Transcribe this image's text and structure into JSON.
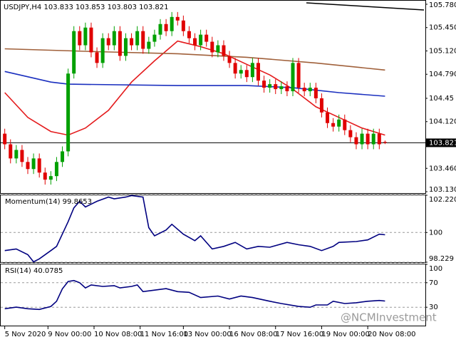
{
  "chart_data": [
    {
      "type": "candlestick",
      "title": "USDJPY,H4",
      "open": [
        103.95,
        103.8,
        103.6,
        103.72,
        103.55,
        103.45,
        103.6,
        103.4,
        103.3,
        103.35,
        103.55,
        103.7,
        104.8,
        105.4,
        105.2,
        105.45,
        105.1,
        104.95,
        105.3,
        105.2,
        105.4,
        105.05,
        105.3,
        105.2,
        105.4,
        105.15,
        105.25,
        105.35,
        105.5,
        105.4,
        105.6,
        105.55,
        105.4,
        105.3,
        105.2,
        105.35,
        105.25,
        105.1,
        105.2,
        105.05,
        104.95,
        104.8,
        104.85,
        104.75,
        104.95,
        104.7,
        104.6,
        104.65,
        104.58,
        104.62,
        104.55,
        104.95,
        104.6,
        104.55,
        104.6,
        104.45,
        104.25,
        104.1,
        104.05,
        104.15,
        104.0,
        103.9,
        103.8,
        103.95,
        103.8,
        103.95,
        103.833
      ],
      "high": [
        104.02,
        103.87,
        103.79,
        103.79,
        103.62,
        103.67,
        103.67,
        103.47,
        103.42,
        103.62,
        103.77,
        104.87,
        105.47,
        105.47,
        105.52,
        105.52,
        105.17,
        105.37,
        105.37,
        105.47,
        105.47,
        105.37,
        105.37,
        105.47,
        105.47,
        105.32,
        105.42,
        105.57,
        105.57,
        105.67,
        105.67,
        105.62,
        105.47,
        105.37,
        105.42,
        105.42,
        105.32,
        105.27,
        105.27,
        105.12,
        105.02,
        104.92,
        104.92,
        105.02,
        105.02,
        104.77,
        104.72,
        104.72,
        104.69,
        104.69,
        105.02,
        105.02,
        104.67,
        104.67,
        104.67,
        104.52,
        104.32,
        104.17,
        104.22,
        104.22,
        104.07,
        103.97,
        104.02,
        104.02,
        104.02,
        104.02,
        103.853
      ],
      "low": [
        103.73,
        103.53,
        103.53,
        103.48,
        103.38,
        103.38,
        103.33,
        103.23,
        103.23,
        103.28,
        103.48,
        103.63,
        104.73,
        105.13,
        105.13,
        105.03,
        104.88,
        104.88,
        105.13,
        105.13,
        104.98,
        104.98,
        105.13,
        105.13,
        105.08,
        105.08,
        105.18,
        105.28,
        105.33,
        105.33,
        105.48,
        105.33,
        105.23,
        105.13,
        105.13,
        105.18,
        105.03,
        105.03,
        104.98,
        104.88,
        104.73,
        104.73,
        104.68,
        104.68,
        104.63,
        104.53,
        104.53,
        104.51,
        104.51,
        104.48,
        104.48,
        104.53,
        104.48,
        104.48,
        104.38,
        104.18,
        104.03,
        103.98,
        103.98,
        103.93,
        103.83,
        103.73,
        103.73,
        103.73,
        103.73,
        103.73,
        103.803
      ],
      "close": [
        103.8,
        103.6,
        103.72,
        103.55,
        103.45,
        103.6,
        103.4,
        103.3,
        103.35,
        103.55,
        103.7,
        104.8,
        105.4,
        105.2,
        105.45,
        105.1,
        104.95,
        105.3,
        105.2,
        105.4,
        105.05,
        105.3,
        105.2,
        105.4,
        105.15,
        105.25,
        105.35,
        105.5,
        105.4,
        105.6,
        105.55,
        105.4,
        105.3,
        105.2,
        105.35,
        105.25,
        105.1,
        105.2,
        105.05,
        104.95,
        104.8,
        104.85,
        104.75,
        104.95,
        104.7,
        104.6,
        104.65,
        104.58,
        104.62,
        104.55,
        104.95,
        104.6,
        104.55,
        104.6,
        104.45,
        104.25,
        104.1,
        104.05,
        104.15,
        104.0,
        103.9,
        103.8,
        103.95,
        103.8,
        103.95,
        103.8,
        103.821
      ],
      "up_color": "#00a000",
      "down_color": "#e00000",
      "lines": [
        {
          "color": "#e41a1c",
          "x": [
            0,
            4,
            8,
            11,
            14,
            18,
            22,
            26,
            30,
            34,
            38,
            42,
            46,
            50,
            54,
            58,
            62,
            66
          ],
          "values": [
            104.53,
            104.18,
            103.98,
            103.93,
            104.03,
            104.28,
            104.68,
            104.98,
            105.26,
            105.18,
            105.08,
            104.93,
            104.78,
            104.58,
            104.33,
            104.18,
            104.03,
            103.93
          ]
        },
        {
          "color": "#1a2fbf",
          "x": [
            0,
            8,
            11,
            30,
            42,
            50,
            58,
            66
          ],
          "values": [
            104.83,
            104.68,
            104.65,
            104.63,
            104.63,
            104.6,
            104.53,
            104.48
          ]
        },
        {
          "color": "#a0603a",
          "x": [
            0,
            16,
            30,
            42,
            54,
            66
          ],
          "values": [
            105.15,
            105.11,
            105.08,
            105.03,
            104.95,
            104.85
          ]
        }
      ],
      "ylim": [
        103.11,
        105.83
      ],
      "yticks": [
        {
          "value": 105.78,
          "label": "105.780"
        },
        {
          "value": 105.12,
          "label": "105.120"
        },
        {
          "value": 105.45,
          "label": "105.450"
        },
        {
          "value": 104.79,
          "label": "104.790"
        },
        104.45,
        {
          "value": 104.12,
          "label": "104.120"
        },
        103.821,
        {
          "value": 103.46,
          "label": "103.460"
        },
        {
          "value": 103.13,
          "label": "103.130"
        }
      ],
      "xlim": [
        -0.7,
        73
      ],
      "xticks": [
        {
          "value": 0,
          "label": "5 Nov 2020"
        },
        {
          "value": 7.5,
          "label": "9 Nov 00:00"
        },
        {
          "value": 15.5,
          "label": "10 Nov 08:00"
        },
        {
          "value": 23.5,
          "label": "11 Nov 16:00"
        },
        {
          "value": 31,
          "label": "13 Nov 00:00"
        },
        {
          "value": 39,
          "label": "16 Nov 08:00"
        },
        {
          "value": 47,
          "label": "17 Nov 16:00"
        },
        {
          "value": 55,
          "label": "19 Nov 00:00"
        },
        {
          "value": 63,
          "label": "20 Nov 08:00"
        }
      ]
    },
    {
      "type": "line",
      "title": "Momentum(14) 99.8653",
      "color": "#000080",
      "x": [
        0,
        2,
        4,
        5,
        6,
        8,
        9,
        11,
        12,
        13,
        14,
        16,
        18,
        19,
        21,
        22,
        24,
        25,
        26,
        28,
        29,
        31,
        33,
        34,
        36,
        38,
        40,
        42,
        44,
        46,
        49,
        51,
        53,
        55,
        57,
        58,
        61,
        63,
        65,
        66
      ],
      "values": [
        98.92,
        99.02,
        98.68,
        98.25,
        98.43,
        98.92,
        99.17,
        100.64,
        101.47,
        101.86,
        101.52,
        101.86,
        102.11,
        102.01,
        102.11,
        102.2,
        102.11,
        100.29,
        99.8,
        100.15,
        100.49,
        99.9,
        99.51,
        99.8,
        99.02,
        99.17,
        99.41,
        99.02,
        99.17,
        99.12,
        99.41,
        99.27,
        99.17,
        98.92,
        99.17,
        99.41,
        99.46,
        99.56,
        99.9,
        99.8653
      ],
      "ylim": [
        98.229,
        102.2209
      ],
      "yticks": [
        102.2209,
        100,
        98.229
      ],
      "grid": true
    },
    {
      "type": "line",
      "title": "RSI(14) 40.0785",
      "color": "#000080",
      "x": [
        0,
        2,
        4,
        6,
        8,
        9,
        10,
        11,
        12,
        13,
        14,
        15,
        17,
        19,
        20,
        22,
        23,
        24,
        26,
        28,
        30,
        32,
        34,
        37,
        39,
        41,
        43,
        46,
        48,
        51,
        53,
        54,
        56,
        57,
        59,
        61,
        63,
        65,
        66
      ],
      "values": [
        27.6,
        30.1,
        27.6,
        26.4,
        31.3,
        39.8,
        60,
        72,
        73.6,
        70,
        61.5,
        66.4,
        64,
        65.2,
        61.5,
        64,
        66.4,
        55.5,
        57.9,
        60.3,
        55.5,
        54.3,
        45.8,
        48.2,
        43.4,
        48.2,
        45.8,
        39.8,
        36.1,
        31.3,
        30,
        33.7,
        33.7,
        39.8,
        36.1,
        37.3,
        39.8,
        41,
        40.0785
      ],
      "ylim": [
        0,
        100
      ],
      "yticks": [
        100,
        70,
        30
      ],
      "grid": true
    }
  ],
  "watermark": "@NCMInvestment"
}
